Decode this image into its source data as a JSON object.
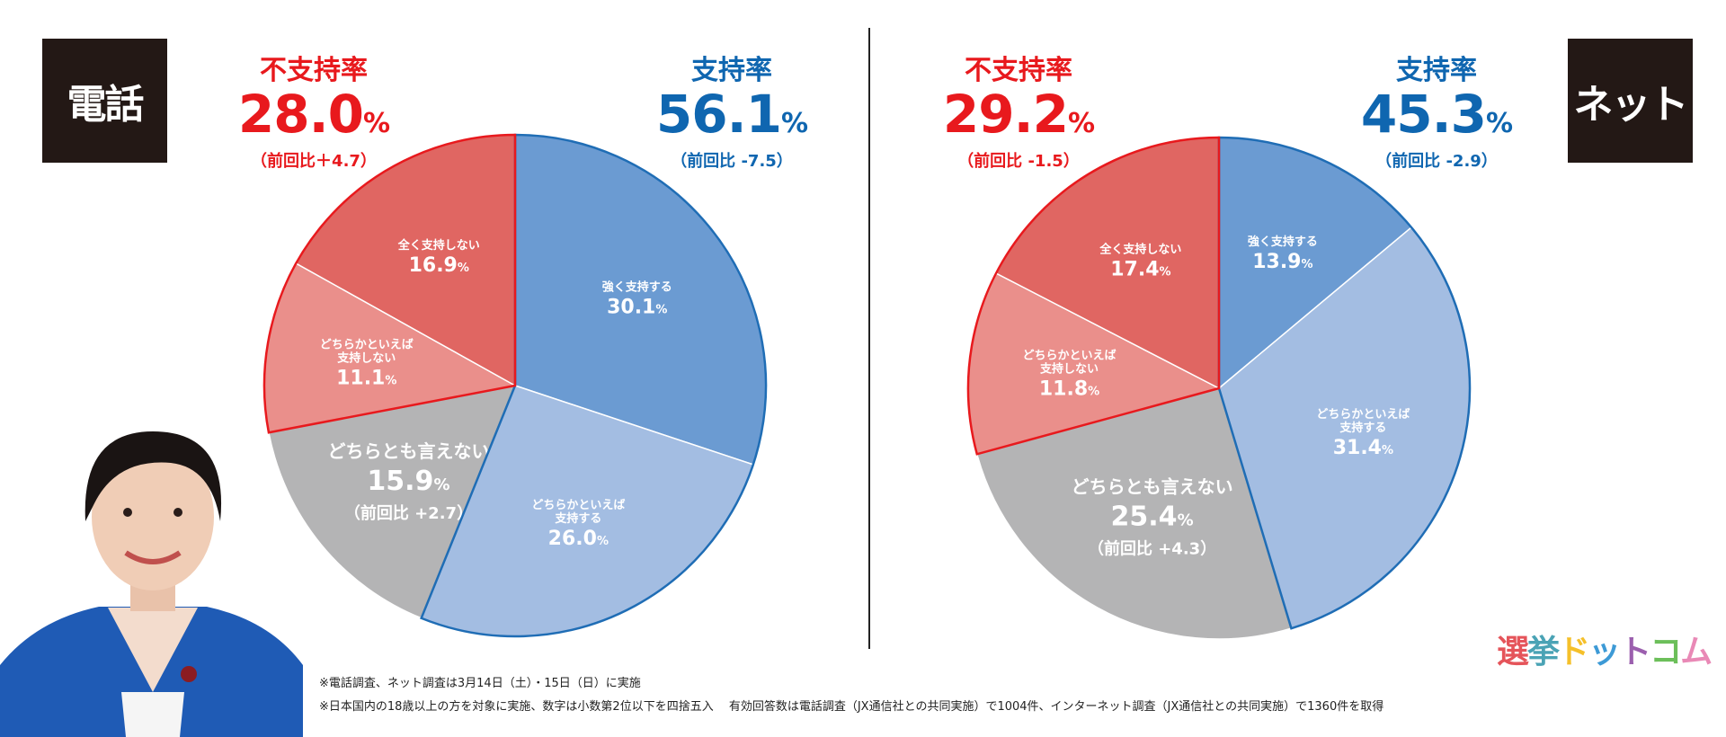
{
  "chart_data": [
    {
      "type": "pie",
      "panel_label": "電話",
      "start": "top",
      "direction": "clockwise",
      "disapproval": {
        "title": "不支持率",
        "value": "28.0",
        "unit": "%",
        "change": "（前回比＋4.7）"
      },
      "approval": {
        "title": "支持率",
        "value": "56.1",
        "unit": "%",
        "change": "（前回比 -7.5）"
      },
      "slices": [
        {
          "label": [
            "強く支持する"
          ],
          "value": 30.1,
          "color": "#6b9bd2",
          "group": "support"
        },
        {
          "label": [
            "どちらかといえば",
            "支持する"
          ],
          "value": 26.0,
          "color": "#a3bde2",
          "group": "support"
        },
        {
          "label": [
            "どちらとも言えない"
          ],
          "value": 15.9,
          "color": "#b4b4b5",
          "group": "neutral",
          "note": "（前回比 +2.7）"
        },
        {
          "label": [
            "どちらかといえば",
            "支持しない"
          ],
          "value": 11.1,
          "color": "#ea8f8b",
          "group": "oppose"
        },
        {
          "label": [
            "全く支持しない"
          ],
          "value": 16.9,
          "color": "#e06662",
          "group": "oppose"
        }
      ]
    },
    {
      "type": "pie",
      "panel_label": "ネット",
      "start": "top",
      "direction": "clockwise",
      "disapproval": {
        "title": "不支持率",
        "value": "29.2",
        "unit": "%",
        "change": "（前回比 -1.5）"
      },
      "approval": {
        "title": "支持率",
        "value": "45.3",
        "unit": "%",
        "change": "（前回比 -2.9）"
      },
      "slices": [
        {
          "label": [
            "強く支持する"
          ],
          "value": 13.9,
          "color": "#6b9bd2",
          "group": "support"
        },
        {
          "label": [
            "どちらかといえば",
            "支持する"
          ],
          "value": 31.4,
          "color": "#a3bde2",
          "group": "support"
        },
        {
          "label": [
            "どちらとも言えない"
          ],
          "value": 25.4,
          "color": "#b4b4b5",
          "group": "neutral",
          "note": "（前回比 +4.3）"
        },
        {
          "label": [
            "どちらかといえば",
            "支持しない"
          ],
          "value": 11.8,
          "color": "#ea8f8b",
          "group": "oppose"
        },
        {
          "label": [
            "全く支持しない"
          ],
          "value": 17.4,
          "color": "#e06662",
          "group": "oppose"
        }
      ]
    }
  ],
  "colors": {
    "red": "#e8191d",
    "blue": "#0f66b0",
    "support_outline": "#1f6db5",
    "oppose_outline": "#e8191d"
  },
  "footnotes": [
    "※電話調査、ネット調査は3月14日（土）・15日（日）に実施",
    "※日本国内の18歳以上の方を対象に実施、数字は小数第2位以下を四捨五入　 有効回答数は電話調査（JX通信社との共同実施）で1004件、インターネット調査（JX通信社との共同実施）で1360件を取得"
  ],
  "logo": {
    "chars": [
      "選",
      "挙",
      "ド",
      "ッ",
      "ト",
      "コ",
      "ム"
    ],
    "colors": [
      "#e5545a",
      "#4aa3b5",
      "#f5c02a",
      "#3d9ad6",
      "#9b5fae",
      "#6cbf5a",
      "#e989b6"
    ]
  }
}
